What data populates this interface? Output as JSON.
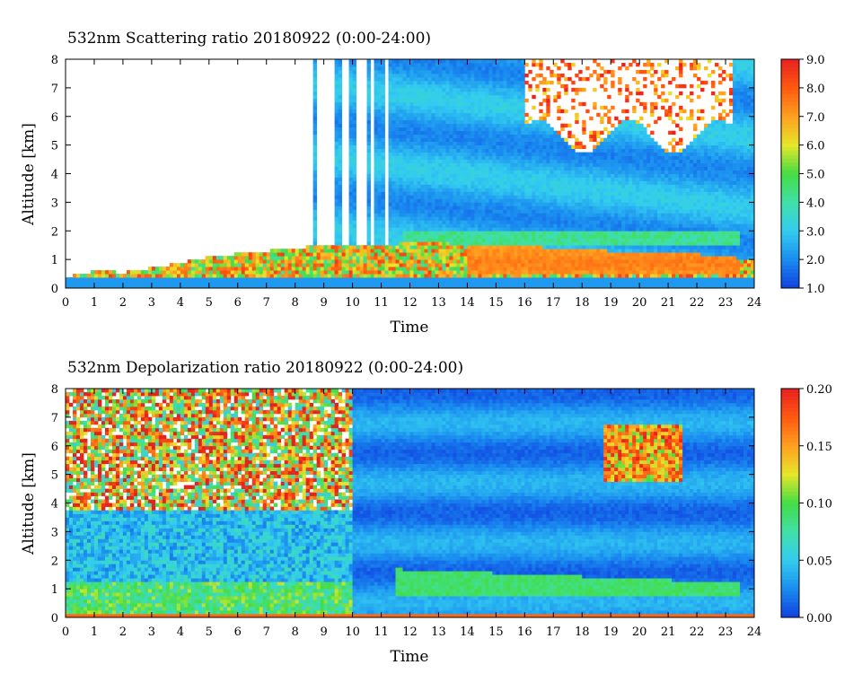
{
  "chart_data": [
    {
      "type": "heatmap",
      "title": "532nm Scattering ratio  20180922 (0:00-24:00)",
      "xlabel": "Time",
      "ylabel": "Altitude [km]",
      "xlim": [
        0,
        24
      ],
      "ylim": [
        0,
        8
      ],
      "x_ticks": [
        "0",
        "1",
        "2",
        "3",
        "4",
        "5",
        "6",
        "7",
        "8",
        "9",
        "10",
        "11",
        "12",
        "13",
        "14",
        "15",
        "16",
        "17",
        "18",
        "19",
        "20",
        "21",
        "22",
        "23",
        "24"
      ],
      "y_ticks": [
        "0",
        "1",
        "2",
        "3",
        "4",
        "5",
        "6",
        "7",
        "8"
      ],
      "colorbar": {
        "range": [
          1.0,
          9.0
        ],
        "ticks": [
          "1.0",
          "2.0",
          "3.0",
          "4.0",
          "5.0",
          "6.0",
          "7.0",
          "8.0",
          "9.0"
        ],
        "colors": [
          "#1040e0",
          "#1a8cf0",
          "#33ccf0",
          "#40e0a8",
          "#44dd44",
          "#e6e62a",
          "#ffa020",
          "#ff5a10",
          "#e82020"
        ]
      },
      "features": {
        "boundary_layer_top_km": [
          0.4,
          0.6,
          0.55,
          0.7,
          0.9,
          1.1,
          1.2,
          1.3,
          1.4,
          1.5,
          1.5,
          1.5,
          1.6,
          1.6,
          1.5,
          1.5,
          1.5,
          1.4,
          1.4,
          1.3,
          1.3,
          1.2,
          1.2,
          1.1,
          1.0
        ],
        "aerosol_layer_value": 7.5,
        "upper_layer_value": 2.5,
        "high_cloud_start_h": 16,
        "high_cloud_base_km": 5.3
      }
    },
    {
      "type": "heatmap",
      "title": "532nm Depolarization ratio  20180922 (0:00-24:00)",
      "xlabel": "Time",
      "ylabel": "Altitude [km]",
      "xlim": [
        0,
        24
      ],
      "ylim": [
        0,
        8
      ],
      "x_ticks": [
        "0",
        "1",
        "2",
        "3",
        "4",
        "5",
        "6",
        "7",
        "8",
        "9",
        "10",
        "11",
        "12",
        "13",
        "14",
        "15",
        "16",
        "17",
        "18",
        "19",
        "20",
        "21",
        "22",
        "23",
        "24"
      ],
      "y_ticks": [
        "0",
        "1",
        "2",
        "3",
        "4",
        "5",
        "6",
        "7",
        "8"
      ],
      "colorbar": {
        "range": [
          0.0,
          0.2
        ],
        "ticks": [
          "0.00",
          "0.05",
          "0.10",
          "0.15",
          "0.20"
        ],
        "colors": [
          "#1040e0",
          "#1a8cf0",
          "#33ccf0",
          "#40e0a8",
          "#44dd44",
          "#e6e62a",
          "#ffa020",
          "#ff5a10",
          "#e82020"
        ]
      },
      "features": {
        "noisy_region_end_h": 10,
        "layer_value": 0.09,
        "background_value": 0.02
      }
    }
  ]
}
